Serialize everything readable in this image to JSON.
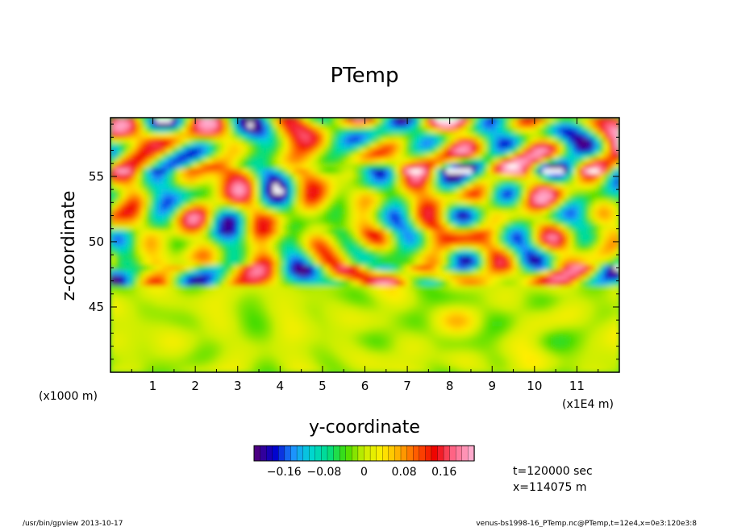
{
  "chart_data": {
    "type": "heatmap",
    "title": "PTemp",
    "xlabel": "y-coordinate",
    "ylabel": "z-coordinate",
    "x_ticks": [
      "1",
      "2",
      "3",
      "4",
      "5",
      "6",
      "7",
      "8",
      "9",
      "10",
      "11"
    ],
    "x_tick_values": [
      1,
      2,
      3,
      4,
      5,
      6,
      7,
      8,
      9,
      10,
      11
    ],
    "x_range": [
      0,
      12
    ],
    "x_unit_left": "(x1000 m)",
    "x_unit_right": "(x1E4 m)",
    "y_ticks": [
      "45",
      "50",
      "55"
    ],
    "y_tick_values": [
      45,
      50,
      55
    ],
    "y_range": [
      40,
      59.5
    ],
    "colorbar": {
      "tick_labels": [
        "−0.16",
        "−0.08",
        "0",
        "0.08",
        "0.16"
      ],
      "tick_values": [
        -0.16,
        -0.08,
        0,
        0.08,
        0.16
      ],
      "range": [
        -0.22,
        0.22
      ],
      "colors": [
        "#4b0082",
        "#0000cd",
        "#1e90ff",
        "#00d5d5",
        "#00dd88",
        "#44dd00",
        "#ccee00",
        "#ffee00",
        "#ffaa00",
        "#ff5500",
        "#ee0000",
        "#ff6688",
        "#ffaacc"
      ]
    },
    "legend_placement": "bottom"
  },
  "annotations": {
    "time": "t=120000 sec",
    "position": "x=114075 m"
  },
  "footer": {
    "left": "/usr/bin/gpview  2013-10-17",
    "right": "venus-bs1998-16_PTemp.nc@PTemp,t=12e4,x=0e3:120e3:8"
  }
}
